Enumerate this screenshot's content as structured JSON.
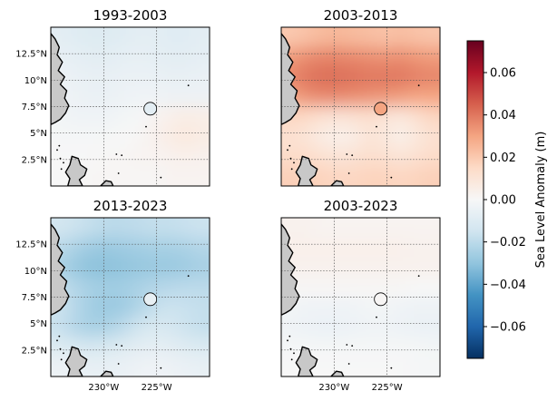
{
  "chart_data": {
    "type": "heatmap",
    "panels": [
      {
        "title": "1993-2003",
        "grid": [
          [
            -0.008,
            -0.009,
            -0.01,
            -0.01,
            -0.009,
            -0.008,
            -0.008,
            -0.009,
            -0.009,
            -0.008
          ],
          [
            -0.006,
            -0.007,
            -0.008,
            -0.008,
            -0.007,
            -0.006,
            -0.007,
            -0.008,
            -0.008,
            -0.007
          ],
          [
            -0.004,
            -0.005,
            -0.006,
            -0.006,
            -0.005,
            -0.005,
            -0.005,
            -0.006,
            -0.006,
            -0.005
          ],
          [
            -0.003,
            -0.004,
            -0.005,
            -0.005,
            -0.004,
            -0.003,
            -0.003,
            -0.004,
            -0.004,
            -0.004
          ],
          [
            -0.002,
            -0.003,
            -0.003,
            -0.003,
            -0.002,
            -0.001,
            0.002,
            0.004,
            0.006,
            0.005
          ],
          [
            -0.001,
            -0.001,
            -0.001,
            -0.001,
            0.0,
            0.001,
            0.003,
            0.006,
            0.008,
            0.006
          ],
          [
            0.0,
            0.0,
            0.0,
            0.001,
            0.001,
            0.002,
            0.002,
            0.003,
            0.004,
            0.003
          ],
          [
            0.0,
            0.0,
            0.001,
            0.001,
            0.001,
            0.001,
            0.001,
            0.002,
            0.002,
            0.002
          ]
        ],
        "station_value": -0.008
      },
      {
        "title": "2003-2013",
        "grid": [
          [
            0.02,
            0.022,
            0.024,
            0.025,
            0.024,
            0.023,
            0.022,
            0.023,
            0.022,
            0.021
          ],
          [
            0.032,
            0.035,
            0.037,
            0.037,
            0.036,
            0.035,
            0.034,
            0.035,
            0.033,
            0.032
          ],
          [
            0.036,
            0.04,
            0.042,
            0.042,
            0.041,
            0.04,
            0.04,
            0.04,
            0.038,
            0.037
          ],
          [
            0.03,
            0.034,
            0.036,
            0.036,
            0.035,
            0.034,
            0.033,
            0.032,
            0.03,
            0.03
          ],
          [
            0.016,
            0.015,
            0.012,
            0.01,
            0.011,
            0.013,
            0.01,
            0.008,
            0.012,
            0.016
          ],
          [
            0.012,
            0.01,
            0.006,
            0.004,
            0.005,
            0.01,
            0.008,
            0.004,
            0.008,
            0.012
          ],
          [
            0.014,
            0.014,
            0.012,
            0.01,
            0.011,
            0.013,
            0.012,
            0.01,
            0.012,
            0.014
          ],
          [
            0.018,
            0.018,
            0.017,
            0.016,
            0.016,
            0.017,
            0.017,
            0.016,
            0.017,
            0.018
          ]
        ],
        "station_value": 0.03
      },
      {
        "title": "2013-2023",
        "grid": [
          [
            -0.014,
            -0.016,
            -0.018,
            -0.02,
            -0.02,
            -0.019,
            -0.018,
            -0.018,
            -0.017,
            -0.016
          ],
          [
            -0.02,
            -0.024,
            -0.027,
            -0.028,
            -0.027,
            -0.026,
            -0.025,
            -0.025,
            -0.024,
            -0.022
          ],
          [
            -0.024,
            -0.028,
            -0.031,
            -0.031,
            -0.03,
            -0.029,
            -0.028,
            -0.028,
            -0.027,
            -0.025
          ],
          [
            -0.018,
            -0.022,
            -0.025,
            -0.026,
            -0.026,
            -0.024,
            -0.022,
            -0.021,
            -0.02,
            -0.02
          ],
          [
            -0.016,
            -0.021,
            -0.026,
            -0.028,
            -0.027,
            -0.023,
            -0.018,
            -0.016,
            -0.017,
            -0.018
          ],
          [
            -0.017,
            -0.022,
            -0.025,
            -0.024,
            -0.02,
            -0.015,
            -0.012,
            -0.013,
            -0.016,
            -0.018
          ],
          [
            -0.01,
            -0.012,
            -0.013,
            -0.012,
            -0.01,
            -0.008,
            -0.007,
            -0.008,
            -0.01,
            -0.011
          ],
          [
            -0.004,
            -0.005,
            -0.006,
            -0.006,
            -0.005,
            -0.004,
            -0.003,
            -0.004,
            -0.005,
            -0.006
          ]
        ],
        "station_value": -0.006
      },
      {
        "title": "2003-2023",
        "grid": [
          [
            0.003,
            0.003,
            0.002,
            0.002,
            0.002,
            0.002,
            0.002,
            0.002,
            0.002,
            0.002
          ],
          [
            0.004,
            0.004,
            0.004,
            0.004,
            0.004,
            0.004,
            0.004,
            0.004,
            0.003,
            0.003
          ],
          [
            0.003,
            0.003,
            0.003,
            0.003,
            0.003,
            0.003,
            0.003,
            0.003,
            0.003,
            0.003
          ],
          [
            0.001,
            0.001,
            0.001,
            0.001,
            0.001,
            0.001,
            0.001,
            0.001,
            0.0,
            0.0
          ],
          [
            -0.002,
            -0.003,
            -0.003,
            -0.003,
            -0.003,
            -0.002,
            -0.002,
            -0.003,
            -0.004,
            -0.004
          ],
          [
            -0.003,
            -0.004,
            -0.005,
            -0.005,
            -0.004,
            -0.003,
            -0.003,
            -0.004,
            -0.005,
            -0.005
          ],
          [
            -0.001,
            -0.001,
            -0.001,
            -0.001,
            -0.001,
            -0.001,
            -0.001,
            -0.001,
            -0.001,
            -0.002
          ],
          [
            0.0,
            0.0,
            0.0,
            0.0,
            0.0,
            0.0,
            0.0,
            0.0,
            -0.001,
            -0.001
          ]
        ],
        "station_value": 0.001
      }
    ],
    "lon_range": [
      -235,
      -220
    ],
    "lat_range": [
      0,
      15
    ],
    "x_ticks": [
      {
        "value": -230,
        "label": "230°W"
      },
      {
        "value": -225,
        "label": "225°W"
      }
    ],
    "y_ticks": [
      {
        "value": 2.5,
        "label": "2.5°N"
      },
      {
        "value": 5,
        "label": "5°N"
      },
      {
        "value": 7.5,
        "label": "7.5°N"
      },
      {
        "value": 10,
        "label": "10°N"
      },
      {
        "value": 12.5,
        "label": "12.5°N"
      }
    ],
    "station": {
      "lon": -225.6,
      "lat": 7.3
    },
    "colorbar": {
      "label": "Sea Level Anomaly (m)",
      "vmin": -0.075,
      "vmax": 0.075,
      "cmap": "RdBu_r",
      "ticks": [
        {
          "value": 0.06,
          "label": "0.06"
        },
        {
          "value": 0.04,
          "label": "0.04"
        },
        {
          "value": 0.02,
          "label": "0.02"
        },
        {
          "value": 0.0,
          "label": "0.00"
        },
        {
          "value": -0.02,
          "label": "−0.02"
        },
        {
          "value": -0.04,
          "label": "−0.04"
        },
        {
          "value": -0.06,
          "label": "−0.06"
        }
      ]
    },
    "grid": true,
    "colors": {
      "land": "#c8c8c8",
      "coast": "#000000",
      "gridline": "#555555"
    }
  }
}
